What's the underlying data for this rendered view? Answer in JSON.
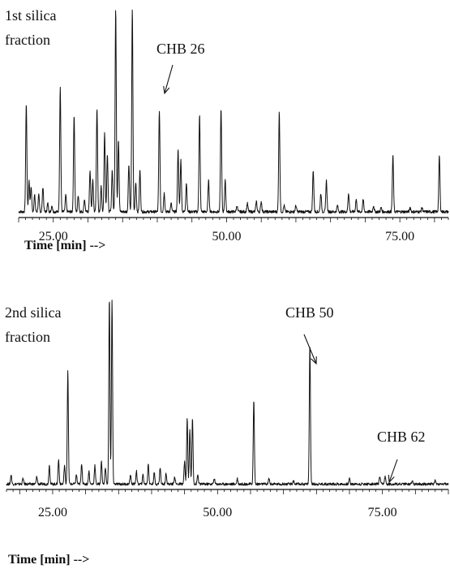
{
  "chart_data": [
    {
      "type": "line",
      "title": "1st silica\nfraction",
      "xlabel": "Time [min] -->",
      "x_ticks": [
        25,
        50,
        75
      ],
      "x_tick_labels": [
        "25.00",
        "50.00",
        "75.00"
      ],
      "xlim": [
        20,
        82
      ],
      "ylim": [
        0,
        100
      ],
      "grid": false,
      "baseline": 2,
      "peaks": [
        {
          "x": 21.1,
          "y": 52
        },
        {
          "x": 21.5,
          "y": 15
        },
        {
          "x": 21.8,
          "y": 12
        },
        {
          "x": 22.3,
          "y": 8
        },
        {
          "x": 22.9,
          "y": 8
        },
        {
          "x": 23.5,
          "y": 12
        },
        {
          "x": 24.2,
          "y": 4
        },
        {
          "x": 24.8,
          "y": 3
        },
        {
          "x": 26.0,
          "y": 60
        },
        {
          "x": 26.8,
          "y": 8
        },
        {
          "x": 28.0,
          "y": 47
        },
        {
          "x": 28.6,
          "y": 8
        },
        {
          "x": 29.5,
          "y": 6
        },
        {
          "x": 30.3,
          "y": 20
        },
        {
          "x": 30.7,
          "y": 15
        },
        {
          "x": 31.3,
          "y": 50
        },
        {
          "x": 31.9,
          "y": 12
        },
        {
          "x": 32.4,
          "y": 38
        },
        {
          "x": 32.8,
          "y": 28
        },
        {
          "x": 33.5,
          "y": 20
        },
        {
          "x": 34.0,
          "y": 98
        },
        {
          "x": 34.4,
          "y": 35
        },
        {
          "x": 35.9,
          "y": 23
        },
        {
          "x": 36.4,
          "y": 98
        },
        {
          "x": 36.9,
          "y": 14
        },
        {
          "x": 37.5,
          "y": 20
        },
        {
          "x": 40.3,
          "y": 49
        },
        {
          "x": 41.0,
          "y": 9
        },
        {
          "x": 42.0,
          "y": 4
        },
        {
          "x": 43.0,
          "y": 30
        },
        {
          "x": 43.4,
          "y": 25
        },
        {
          "x": 44.2,
          "y": 14
        },
        {
          "x": 46.1,
          "y": 47
        },
        {
          "x": 47.4,
          "y": 15
        },
        {
          "x": 49.2,
          "y": 50
        },
        {
          "x": 49.8,
          "y": 15
        },
        {
          "x": 51.5,
          "y": 3
        },
        {
          "x": 53.0,
          "y": 4
        },
        {
          "x": 54.3,
          "y": 5
        },
        {
          "x": 55.0,
          "y": 5
        },
        {
          "x": 57.6,
          "y": 48
        },
        {
          "x": 58.3,
          "y": 3
        },
        {
          "x": 60.0,
          "y": 3
        },
        {
          "x": 62.5,
          "y": 20
        },
        {
          "x": 63.6,
          "y": 9
        },
        {
          "x": 64.4,
          "y": 15
        },
        {
          "x": 66.0,
          "y": 3
        },
        {
          "x": 67.6,
          "y": 9
        },
        {
          "x": 68.7,
          "y": 6
        },
        {
          "x": 69.7,
          "y": 6
        },
        {
          "x": 71.2,
          "y": 3
        },
        {
          "x": 72.3,
          "y": 2
        },
        {
          "x": 74.0,
          "y": 27
        },
        {
          "x": 76.5,
          "y": 2
        },
        {
          "x": 78.2,
          "y": 2
        },
        {
          "x": 80.7,
          "y": 27
        }
      ],
      "annotations": [
        {
          "text": "CHB 26",
          "x": 40.3
        }
      ]
    },
    {
      "type": "line",
      "title": "2nd silica\nfraction",
      "xlabel": "Time [min] -->",
      "x_ticks": [
        25,
        50,
        75
      ],
      "x_tick_labels": [
        "25.00",
        "50.00",
        "75.00"
      ],
      "xlim": [
        18,
        85
      ],
      "ylim": [
        0,
        100
      ],
      "grid": false,
      "baseline": 2,
      "peaks": [
        {
          "x": 18.7,
          "y": 5
        },
        {
          "x": 20.5,
          "y": 3
        },
        {
          "x": 22.6,
          "y": 4
        },
        {
          "x": 24.5,
          "y": 10
        },
        {
          "x": 25.9,
          "y": 13
        },
        {
          "x": 26.8,
          "y": 10
        },
        {
          "x": 27.3,
          "y": 60
        },
        {
          "x": 28.6,
          "y": 5
        },
        {
          "x": 29.4,
          "y": 11
        },
        {
          "x": 30.5,
          "y": 7
        },
        {
          "x": 31.4,
          "y": 10
        },
        {
          "x": 32.4,
          "y": 12
        },
        {
          "x": 33.0,
          "y": 9
        },
        {
          "x": 33.6,
          "y": 100
        },
        {
          "x": 34.0,
          "y": 98
        },
        {
          "x": 36.8,
          "y": 5
        },
        {
          "x": 37.7,
          "y": 7
        },
        {
          "x": 38.7,
          "y": 5
        },
        {
          "x": 39.5,
          "y": 11
        },
        {
          "x": 40.4,
          "y": 6
        },
        {
          "x": 41.3,
          "y": 9
        },
        {
          "x": 42.2,
          "y": 6
        },
        {
          "x": 43.5,
          "y": 4
        },
        {
          "x": 45.0,
          "y": 12
        },
        {
          "x": 45.4,
          "y": 35
        },
        {
          "x": 45.8,
          "y": 29
        },
        {
          "x": 46.2,
          "y": 35
        },
        {
          "x": 47.0,
          "y": 5
        },
        {
          "x": 49.5,
          "y": 3
        },
        {
          "x": 53.0,
          "y": 3
        },
        {
          "x": 55.5,
          "y": 45
        },
        {
          "x": 57.8,
          "y": 3
        },
        {
          "x": 61.5,
          "y": 2
        },
        {
          "x": 64.0,
          "y": 75
        },
        {
          "x": 70.0,
          "y": 3
        },
        {
          "x": 74.6,
          "y": 4
        },
        {
          "x": 75.4,
          "y": 4
        },
        {
          "x": 79.5,
          "y": 2
        },
        {
          "x": 83.0,
          "y": 2
        }
      ],
      "annotations": [
        {
          "text": "CHB 50",
          "x": 64.0
        },
        {
          "text": "CHB 62",
          "x": 75.2
        }
      ]
    }
  ]
}
